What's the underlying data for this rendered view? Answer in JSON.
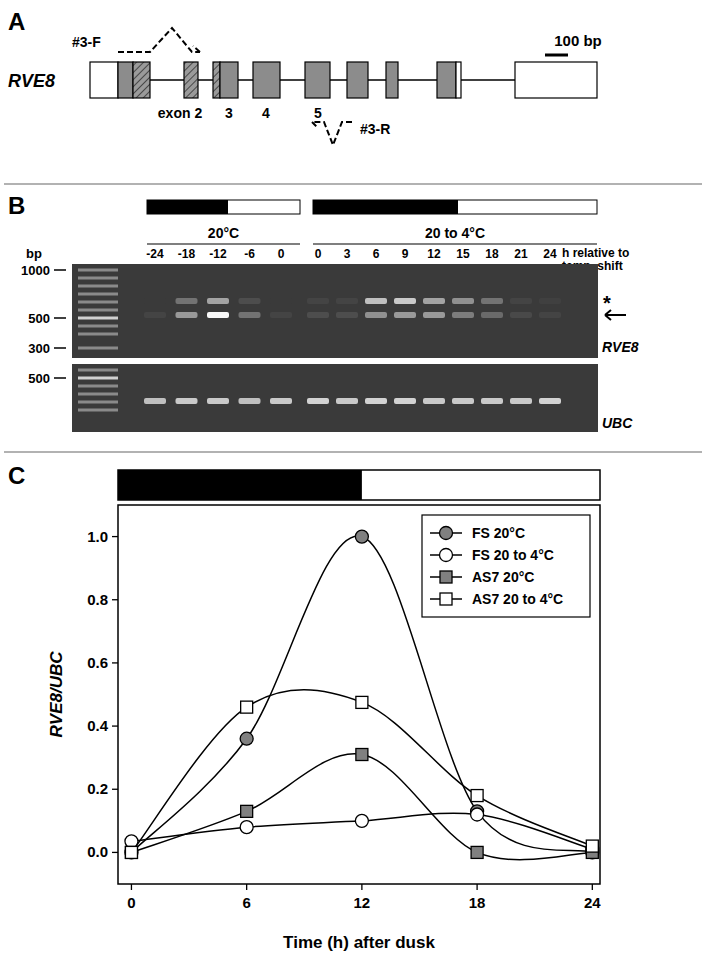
{
  "panel_labels": [
    "A",
    "B",
    "C"
  ],
  "gene_diagram": {
    "gene": "RVE8",
    "scale_bar": "100 bp",
    "primers": [
      "#3-F",
      "#3-R"
    ],
    "exon_labels": [
      "exon 2",
      "3",
      "4",
      "5"
    ]
  },
  "gel": {
    "groups": [
      {
        "label": "20°C",
        "times": [
          -24,
          -18,
          -12,
          -6,
          0
        ]
      },
      {
        "label": "20 to 4°C",
        "times": [
          0,
          3,
          6,
          9,
          12,
          15,
          18,
          21,
          24
        ]
      }
    ],
    "time_unit": [
      "h relative to",
      "temp. shift"
    ],
    "size_unit": "bp",
    "blots": [
      {
        "label": "RVE8",
        "marker_ticks": [
          1000,
          500,
          300
        ],
        "bands": [
          {
            "label": "*",
            "values": [
              0,
              0.3,
              0.55,
              0.1,
              0,
              0.05,
              0.05,
              0.7,
              0.75,
              0.55,
              0.45,
              0.3,
              0.05,
              0.03
            ]
          },
          {
            "marker": "arrow",
            "values": [
              0.05,
              0.5,
              1.0,
              0.3,
              0.05,
              0.1,
              0.1,
              0.45,
              0.5,
              0.5,
              0.35,
              0.25,
              0.08,
              0.05
            ]
          }
        ]
      },
      {
        "label": "UBC",
        "marker_ticks": [
          500
        ],
        "bands": [
          {
            "values": [
              0.7,
              0.75,
              0.75,
              0.7,
              0.75,
              0.8,
              0.75,
              0.8,
              0.8,
              0.75,
              0.75,
              0.75,
              0.75,
              0.8
            ]
          }
        ]
      }
    ]
  },
  "chart_data": {
    "type": "line",
    "x_label": "Time (h) after dusk",
    "y_label": "RVE8/UBC",
    "x": [
      0,
      6,
      12,
      18,
      24
    ],
    "xlim": [
      -0.7,
      24.4
    ],
    "ylim": [
      -0.1,
      1.1
    ],
    "xticks": [
      0,
      6,
      12,
      18,
      24
    ],
    "yticks": [
      {
        "value": 0,
        "label": "0.0"
      },
      {
        "value": 0.2,
        "label": "0.2"
      },
      {
        "value": 0.4,
        "label": "0.4"
      },
      {
        "value": 0.6,
        "label": "0.6"
      },
      {
        "value": 0.8,
        "label": "0.8"
      },
      {
        "value": 1,
        "label": "1.0"
      }
    ],
    "legend": "upper right",
    "line_style": "smooth",
    "series": [
      {
        "name": "FS 20°C",
        "color": "#808080",
        "marker": "circle",
        "values": [
          0.0,
          0.36,
          1.0,
          0.13,
          0.0
        ]
      },
      {
        "name": "FS 20 to 4°C",
        "color": "#ffffff",
        "marker": "circle",
        "values": [
          0.035,
          0.08,
          0.1,
          0.12,
          0.01
        ]
      },
      {
        "name": "AS7 20°C",
        "color": "#808080",
        "marker": "square",
        "values": [
          0.0,
          0.13,
          0.31,
          0.0,
          0.0
        ]
      },
      {
        "name": "AS7 20 to 4°C",
        "color": "#ffffff",
        "marker": "square",
        "values": [
          0.0,
          0.46,
          0.475,
          0.18,
          0.02
        ]
      }
    ]
  }
}
